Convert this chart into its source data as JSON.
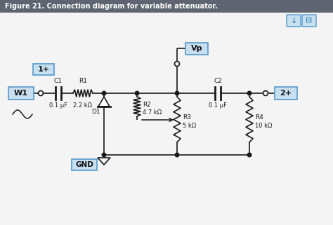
{
  "title": "Figure 21. Connection diagram for variable attenuator.",
  "title_bg": "#5f6570",
  "title_color": "#ffffff",
  "bg_color": "#f4f4f4",
  "box_fill": "#c8dff0",
  "box_edge": "#5599cc",
  "line_color": "#1a1a1a",
  "figsize": [
    4.74,
    3.21
  ],
  "dpi": 100,
  "labels": {
    "W1": "W1",
    "1+": "1+",
    "2+": "2+",
    "Vp": "Vp",
    "GND": "GND",
    "C1": "C1",
    "C1_val": "0.1 μF",
    "R1": "R1",
    "R1_val": "2.2 kΩ",
    "C2": "C2",
    "C2_val": "0.1 μF",
    "R2": "R2",
    "R2_val": "4.7 kΩ",
    "R3": "R3",
    "R3_val": "5 kΩ",
    "R4": "R4",
    "R4_val": "10 kΩ",
    "D1": "D1"
  }
}
